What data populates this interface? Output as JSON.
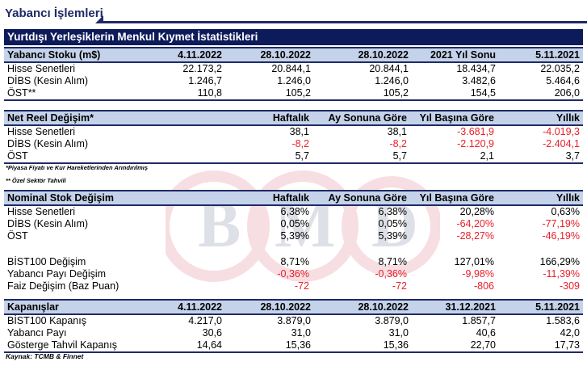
{
  "page_title": "Yabancı İşlemleri",
  "banner": "Yurtdışı Yerleşiklerin Menkul Kıymet İstatistikleri",
  "stock": {
    "header": [
      "Yabancı Stoku (m$)",
      "4.11.2022",
      "28.10.2022",
      "28.10.2022",
      "2021 Yıl Sonu",
      "5.11.2021"
    ],
    "rows": [
      {
        "label": "Hisse Senetleri",
        "values": [
          "22.173,2",
          "20.844,1",
          "20.844,1",
          "18.434,7",
          "22.035,2"
        ]
      },
      {
        "label": "DİBS (Kesin Alım)",
        "values": [
          "1.246,7",
          "1.246,0",
          "1.246,0",
          "3.482,6",
          "5.464,6"
        ]
      },
      {
        "label": "ÖST**",
        "values": [
          "110,8",
          "105,2",
          "105,2",
          "154,5",
          "206,0"
        ]
      }
    ]
  },
  "real_change": {
    "header": [
      "Net Reel Değişim*",
      "Haftalık",
      "Ay Sonuna Göre",
      "Yıl Başına Göre",
      "Yıllık"
    ],
    "rows": [
      {
        "label": "Hisse Senetleri",
        "values": [
          "38,1",
          "38,1",
          "-3.681,9",
          "-4.019,3"
        ]
      },
      {
        "label": "DİBS (Kesin Alım)",
        "values": [
          "-8,2",
          "-8,2",
          "-2.120,9",
          "-2.404,1"
        ]
      },
      {
        "label": "ÖST",
        "values": [
          "5,7",
          "5,7",
          "2,1",
          "3,7"
        ]
      }
    ]
  },
  "notes": [
    "*Piyasa Fiyatı ve Kur Hareketlerinden Arındırılmış",
    "** Özel Sektör Tahvili"
  ],
  "nominal_change": {
    "header": [
      "Nominal Stok Değişim",
      "Haftalık",
      "Ay Sonuna Göre",
      "Yıl Başına Göre",
      "Yıllık"
    ],
    "rows": [
      {
        "label": "Hisse Senetleri",
        "values": [
          "6,38%",
          "6,38%",
          "20,28%",
          "0,63%"
        ]
      },
      {
        "label": "DİBS (Kesin Alım)",
        "values": [
          "0,05%",
          "0,05%",
          "-64,20%",
          "-77,19%"
        ]
      },
      {
        "label": "ÖST",
        "values": [
          "5,39%",
          "5,39%",
          "-28,27%",
          "-46,19%"
        ]
      }
    ],
    "rows2": [
      {
        "label": "BİST100 Değişim",
        "values": [
          "8,71%",
          "8,71%",
          "127,01%",
          "166,29%"
        ]
      },
      {
        "label": "Yabancı Payı Değişim",
        "values": [
          "-0,36%",
          "-0,36%",
          "-9,98%",
          "-11,39%"
        ]
      },
      {
        "label": "Faiz Değişim (Baz Puan)",
        "values": [
          "-72",
          "-72",
          "-806",
          "-309"
        ]
      }
    ]
  },
  "closings": {
    "header": [
      "Kapanışlar",
      "4.11.2022",
      "28.10.2022",
      "28.10.2022",
      "31.12.2021",
      "5.11.2021"
    ],
    "rows": [
      {
        "label": "BİST100 Kapanış",
        "values": [
          "4.217,0",
          "3.879,0",
          "3.879,0",
          "1.857,7",
          "1.583,6"
        ]
      },
      {
        "label": "Yabancı Payı",
        "values": [
          "30,6",
          "31,0",
          "31,0",
          "40,6",
          "42,0"
        ]
      },
      {
        "label": "Gösterge Tahvil Kapanış",
        "values": [
          "14,64",
          "15,36",
          "15,36",
          "22,70",
          "17,73"
        ]
      }
    ]
  },
  "source": "Kaynak: TCMB & Finnet",
  "watermark": "BMD",
  "colors": {
    "navy": "#0d1b5a",
    "header_bg": "#c5d3ea",
    "negative": "#e8202a"
  }
}
